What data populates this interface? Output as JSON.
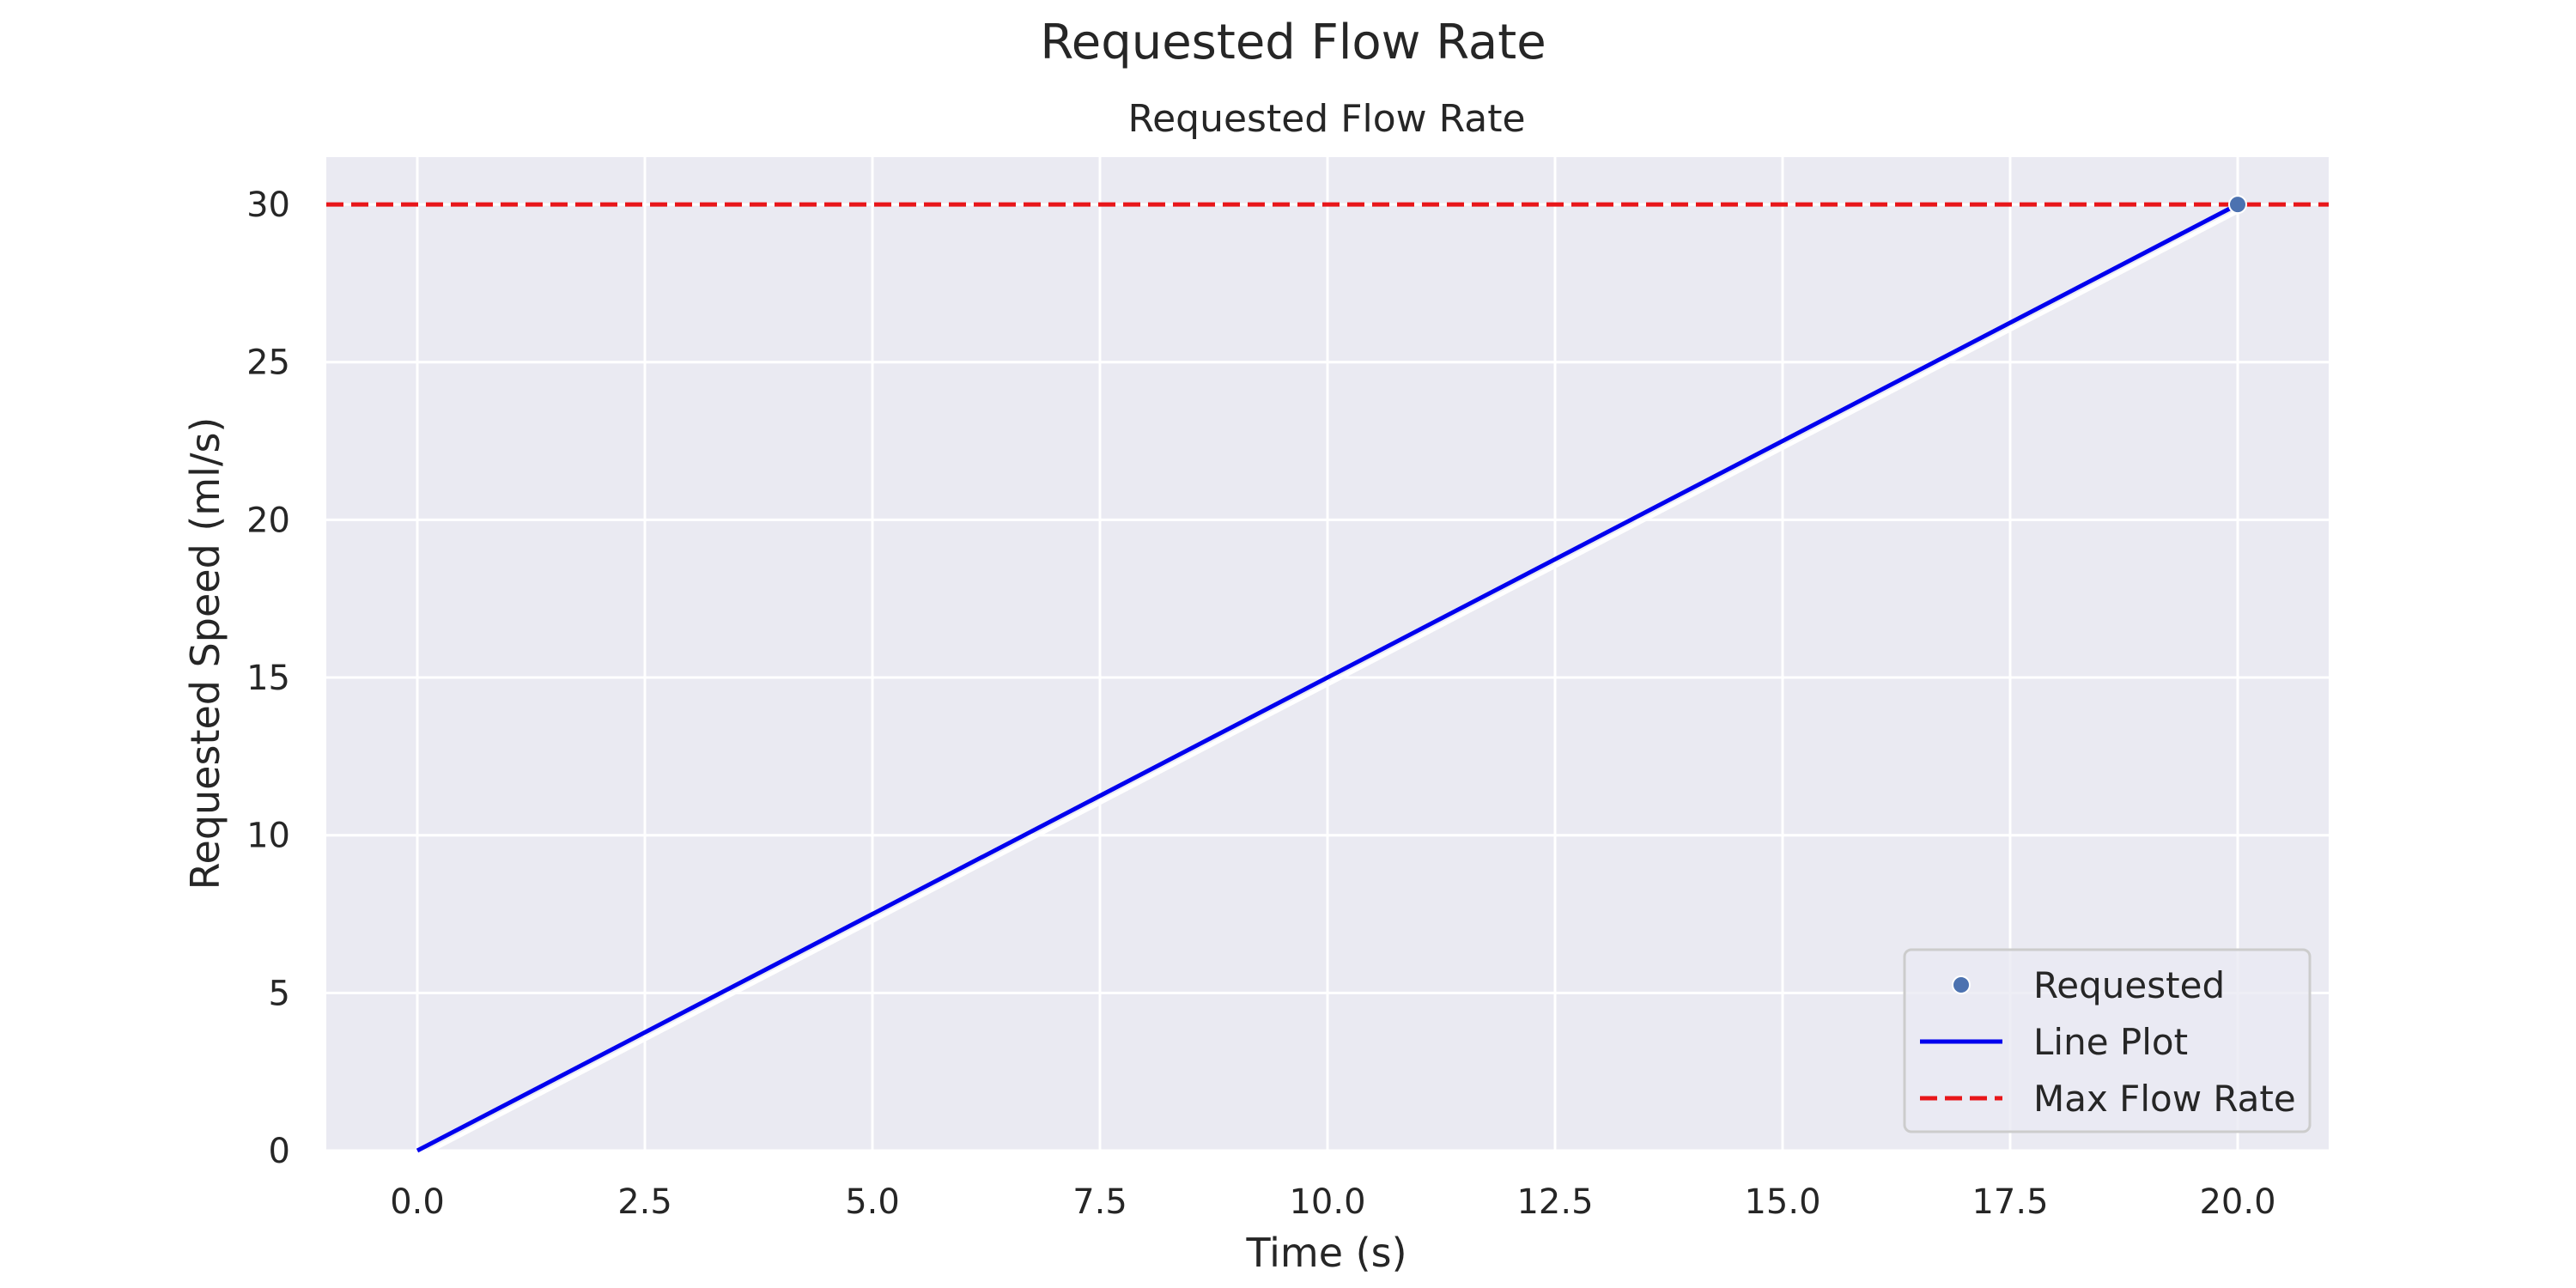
{
  "figure_title": "Requested Flow Rate",
  "chart_data": {
    "type": "line",
    "title": "Requested Flow Rate",
    "xlabel": "Time (s)",
    "ylabel": "Requested Speed (ml/s)",
    "xlim": [
      -1,
      21
    ],
    "ylim": [
      0,
      31.5
    ],
    "xticks": [
      0.0,
      2.5,
      5.0,
      7.5,
      10.0,
      12.5,
      15.0,
      17.5,
      20.0
    ],
    "xtick_labels": [
      "0.0",
      "2.5",
      "5.0",
      "7.5",
      "10.0",
      "12.5",
      "15.0",
      "17.5",
      "20.0"
    ],
    "yticks": [
      0,
      5,
      10,
      15,
      20,
      25,
      30
    ],
    "ytick_labels": [
      "0",
      "5",
      "10",
      "15",
      "20",
      "25",
      "30"
    ],
    "grid": true,
    "legend_position": "lower-right",
    "series": [
      {
        "name": "Requested",
        "kind": "scatter",
        "color": "#4c72b0",
        "x": [
          20.0
        ],
        "y": [
          30.0
        ]
      },
      {
        "name": "Line Plot",
        "kind": "line",
        "color": "#0000ee",
        "x": [
          0.0,
          20.0
        ],
        "y": [
          0.0,
          30.0
        ]
      },
      {
        "name": "Max Flow Rate",
        "kind": "hline",
        "color": "#e8161a",
        "dash": true,
        "y": 30.0
      }
    ]
  }
}
